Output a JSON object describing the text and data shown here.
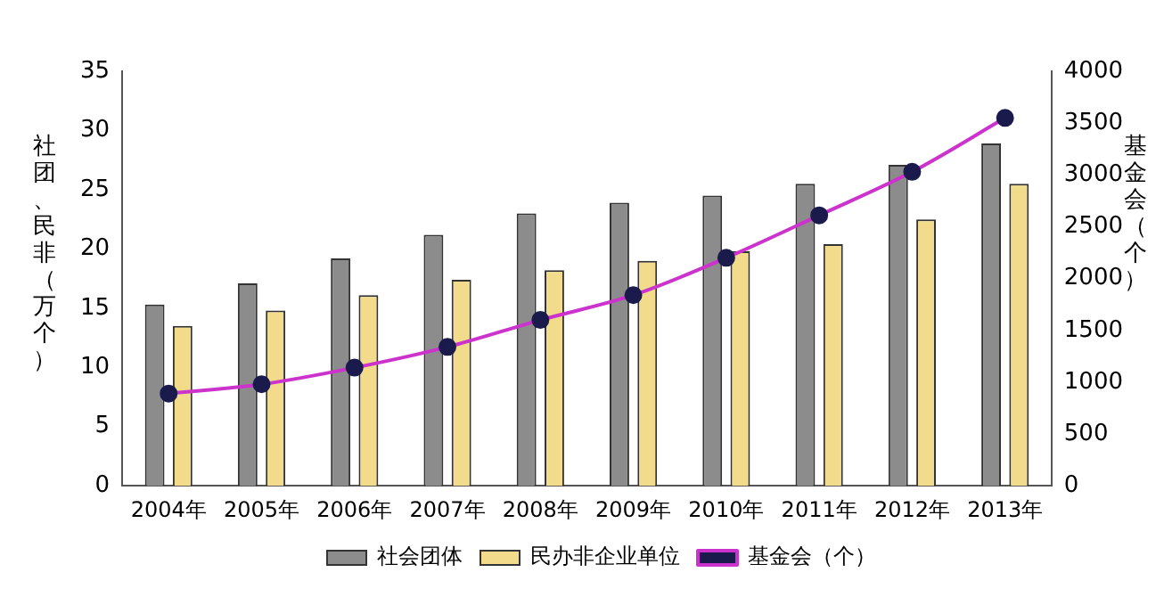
{
  "chart_data": {
    "type": "bar",
    "categories": [
      "2004年",
      "2005年",
      "2006年",
      "2007年",
      "2008年",
      "2009年",
      "2010年",
      "2011年",
      "2012年",
      "2013年"
    ],
    "ylabel": "社团、民非（万个）",
    "y2label": "基金会（个）",
    "series": [
      {
        "name": "社会团体",
        "color": "#8c8c8c",
        "values": [
          15.3,
          17.1,
          19.2,
          21.2,
          23.0,
          23.9,
          24.5,
          25.5,
          27.1,
          28.9
        ]
      },
      {
        "name": "民办非企业单位",
        "color": "#f2dc8c",
        "values": [
          13.5,
          14.8,
          16.1,
          17.4,
          18.2,
          19.0,
          19.8,
          20.4,
          22.5,
          25.5
        ]
      },
      {
        "name": "基金会（个）",
        "type": "line",
        "axis": "y2",
        "color": "#cc33cc",
        "values": [
          890,
          980,
          1140,
          1340,
          1600,
          1840,
          2200,
          2610,
          3030,
          3550
        ]
      }
    ],
    "ylim": [
      0,
      35
    ],
    "yticks": [
      0,
      5,
      10,
      15,
      20,
      25,
      30,
      35
    ],
    "y2lim": [
      0,
      4000
    ],
    "y2ticks": [
      0,
      500,
      1000,
      1500,
      2000,
      2500,
      3000,
      3500,
      4000
    ],
    "grid": false,
    "legend": "bottom",
    "marker": "circle"
  }
}
